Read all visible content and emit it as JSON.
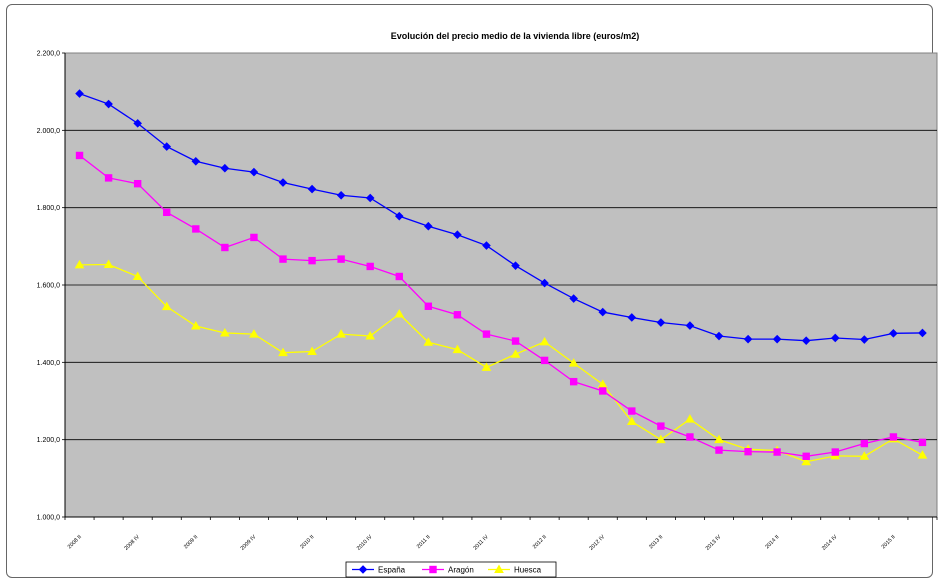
{
  "chart_data": {
    "type": "line",
    "title": "Evolución del precio medio de la vivienda libre (euros/m2)",
    "xlabel": "",
    "ylabel": "",
    "ylim": [
      1000,
      2200
    ],
    "yticks": [
      "1.000,0",
      "1.200,0",
      "1.400,0",
      "1.600,0",
      "1.800,0",
      "2.000,0",
      "2.200,0"
    ],
    "x": [
      "2008 II",
      "2008 III",
      "2008 IV",
      "2009 I",
      "2009 II",
      "2009 III",
      "2009 IV",
      "2010 I",
      "2010 II",
      "2010 III",
      "2010 IV",
      "2011 I",
      "2011 II",
      "2011 III",
      "2011 IV",
      "2012 I",
      "2012 II",
      "2012 III",
      "2012 IV",
      "2013 I",
      "2013 II",
      "2013 III",
      "2013 IV",
      "2014 I",
      "2014 II",
      "2014 III",
      "2014 IV",
      "2015 I",
      "2015 II",
      "2015 III"
    ],
    "xtick_labels": [
      "2008 II",
      "",
      "2008 IV",
      "",
      "2009 II",
      "",
      "2009 IV",
      "",
      "2010 II",
      "",
      "2010 IV",
      "",
      "2011 II",
      "",
      "2011 IV",
      "",
      "2012 II",
      "",
      "2012 IV",
      "",
      "2013 II",
      "",
      "2013 IV",
      "",
      "2014 II",
      "",
      "2014 IV",
      "",
      "2015 II",
      ""
    ],
    "grid": true,
    "legend": "bottom",
    "background": "#c0c0c0",
    "series": [
      {
        "name": "España",
        "color": "#0000ff",
        "marker": "diamond",
        "values": [
          2095,
          2068,
          2018,
          1958,
          1920,
          1902,
          1892,
          1865,
          1848,
          1832,
          1825,
          1778,
          1752,
          1730,
          1702,
          1650,
          1605,
          1565,
          1530,
          1516,
          1503,
          1495,
          1468,
          1460,
          1460,
          1456,
          1463,
          1459,
          1475,
          1476
        ]
      },
      {
        "name": "Aragón",
        "color": "#ff00ff",
        "marker": "square",
        "values": [
          1935,
          1877,
          1862,
          1788,
          1745,
          1697,
          1723,
          1667,
          1663,
          1667,
          1648,
          1622,
          1545,
          1523,
          1473,
          1455,
          1405,
          1350,
          1326,
          1274,
          1235,
          1207,
          1173,
          1169,
          1168,
          1157,
          1168,
          1190,
          1207,
          1193
        ]
      },
      {
        "name": "Huesca",
        "color": "#ffff00",
        "marker": "triangle",
        "values": [
          1652,
          1653,
          1622,
          1544,
          1494,
          1476,
          1473,
          1425,
          1428,
          1473,
          1468,
          1525,
          1452,
          1433,
          1387,
          1421,
          1453,
          1398,
          1343,
          1247,
          1200,
          1253,
          1200,
          1175,
          1172,
          1143,
          1158,
          1157,
          1202,
          1160
        ]
      }
    ]
  }
}
